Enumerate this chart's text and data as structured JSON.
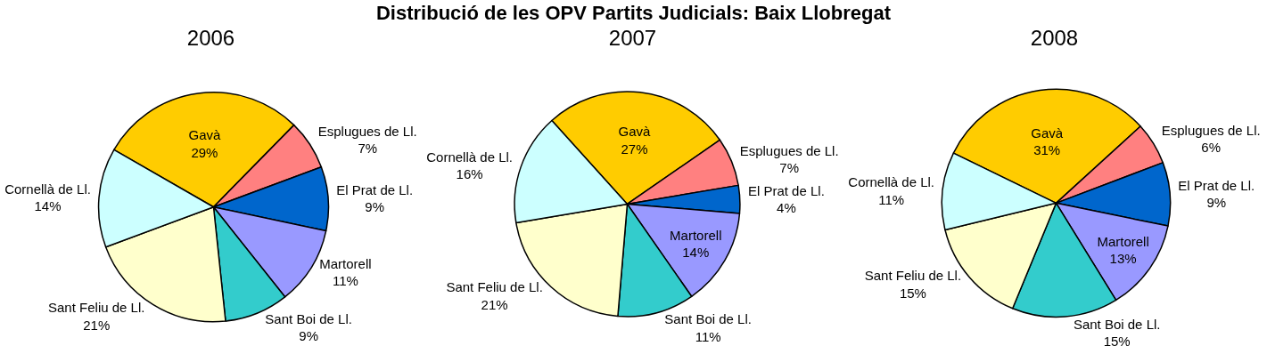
{
  "chart_data": [
    {
      "type": "pie",
      "title": "2006",
      "annotations": [
        "Distribució de les OPV Partits Judicials: Baix Llobregat"
      ],
      "categories": [
        "Gavà",
        "Esplugues de Ll.",
        "El Prat de Ll.",
        "Martorell",
        "Sant Boi de Ll.",
        "Sant Feliu de Ll.",
        "Cornellà de Ll."
      ],
      "values": [
        29,
        7,
        9,
        11,
        9,
        21,
        14
      ],
      "value_labels": [
        "29%",
        "7%",
        "9%",
        "11%",
        "9%",
        "21%",
        "14%"
      ],
      "colors": [
        "#ffcc00",
        "#ff8080",
        "#0066cc",
        "#9999ff",
        "#33cccc",
        "#ffffcc",
        "#ccffff"
      ],
      "legend": false
    },
    {
      "type": "pie",
      "title": "2007",
      "categories": [
        "Gavà",
        "Esplugues de Ll.",
        "El Prat de Ll.",
        "Martorell",
        "Sant Boi de Ll.",
        "Sant Feliu de Ll.",
        "Cornellà de Ll."
      ],
      "values": [
        27,
        7,
        4,
        14,
        11,
        21,
        16
      ],
      "value_labels": [
        "27%",
        "7%",
        "4%",
        "14%",
        "11%",
        "21%",
        "16%"
      ],
      "colors": [
        "#ffcc00",
        "#ff8080",
        "#0066cc",
        "#9999ff",
        "#33cccc",
        "#ffffcc",
        "#ccffff"
      ],
      "legend": false
    },
    {
      "type": "pie",
      "title": "2008",
      "categories": [
        "Gavà",
        "Esplugues de Ll.",
        "El Prat de Ll.",
        "Martorell",
        "Sant Boi de Ll.",
        "Sant Feliu de Ll.",
        "Cornellà de Ll."
      ],
      "values": [
        31,
        6,
        9,
        13,
        15,
        15,
        11
      ],
      "value_labels": [
        "31%",
        "6%",
        "9%",
        "13%",
        "15%",
        "15%",
        "11%"
      ],
      "colors": [
        "#ffcc00",
        "#ff8080",
        "#0066cc",
        "#9999ff",
        "#33cccc",
        "#ffffcc",
        "#ccffff"
      ],
      "legend": false
    }
  ]
}
